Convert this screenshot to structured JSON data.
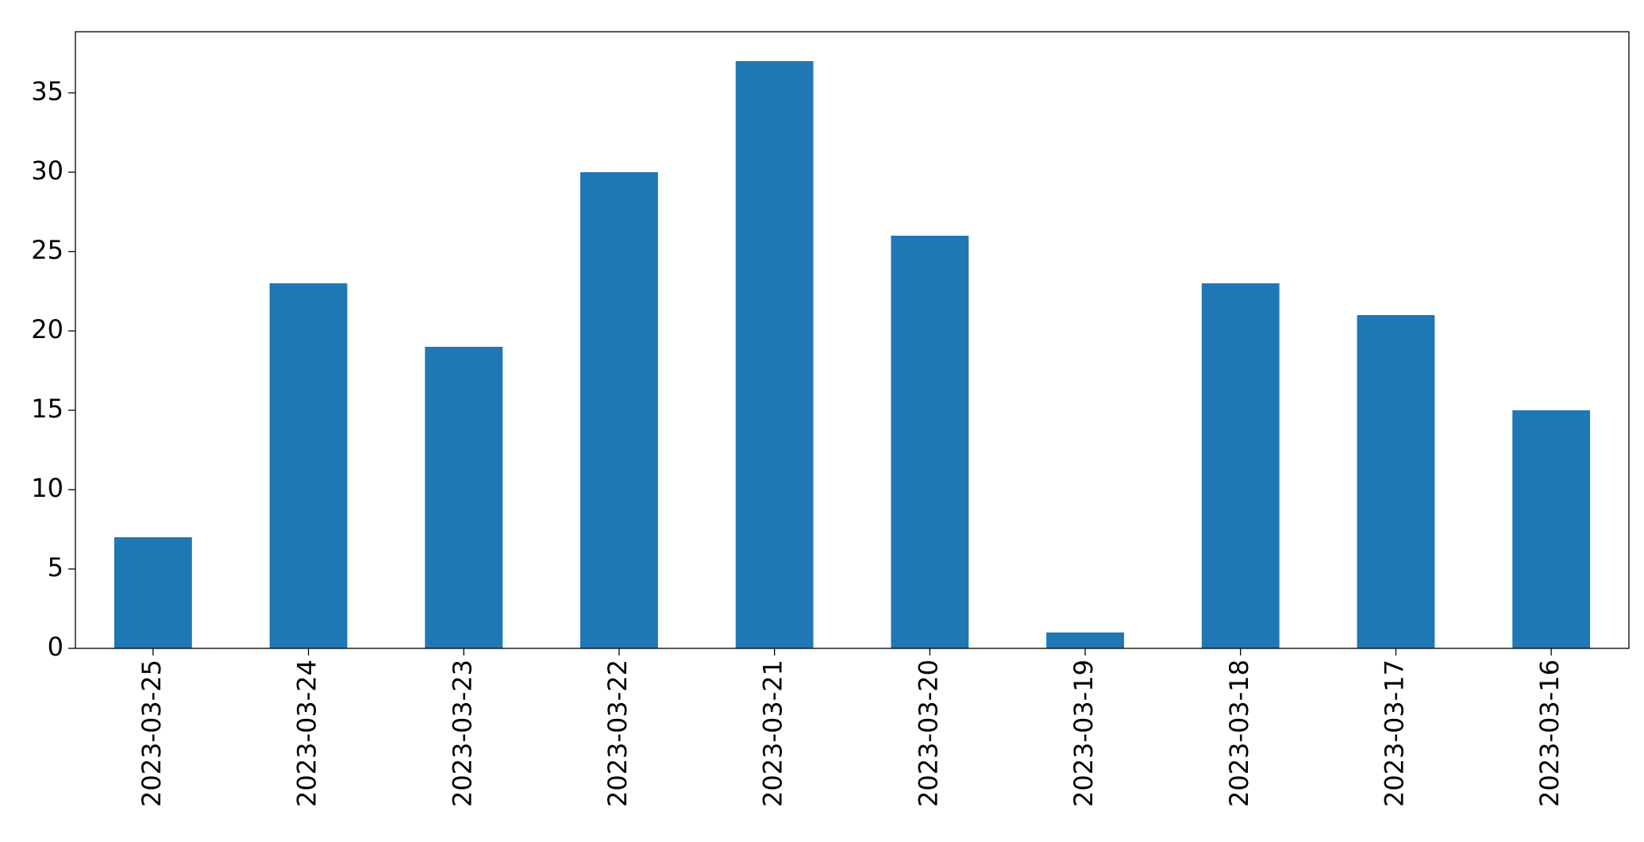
{
  "chart_data": {
    "type": "bar",
    "categories": [
      "2023-03-25",
      "2023-03-24",
      "2023-03-23",
      "2023-03-22",
      "2023-03-21",
      "2023-03-20",
      "2023-03-19",
      "2023-03-18",
      "2023-03-17",
      "2023-03-16"
    ],
    "values": [
      7,
      23,
      19,
      30,
      37,
      26,
      1,
      23,
      21,
      15
    ],
    "color": "#1f77b4",
    "ylim": [
      0,
      38.85
    ],
    "yticks": [
      0,
      5,
      10,
      15,
      20,
      25,
      30,
      35
    ],
    "grid": false
  }
}
